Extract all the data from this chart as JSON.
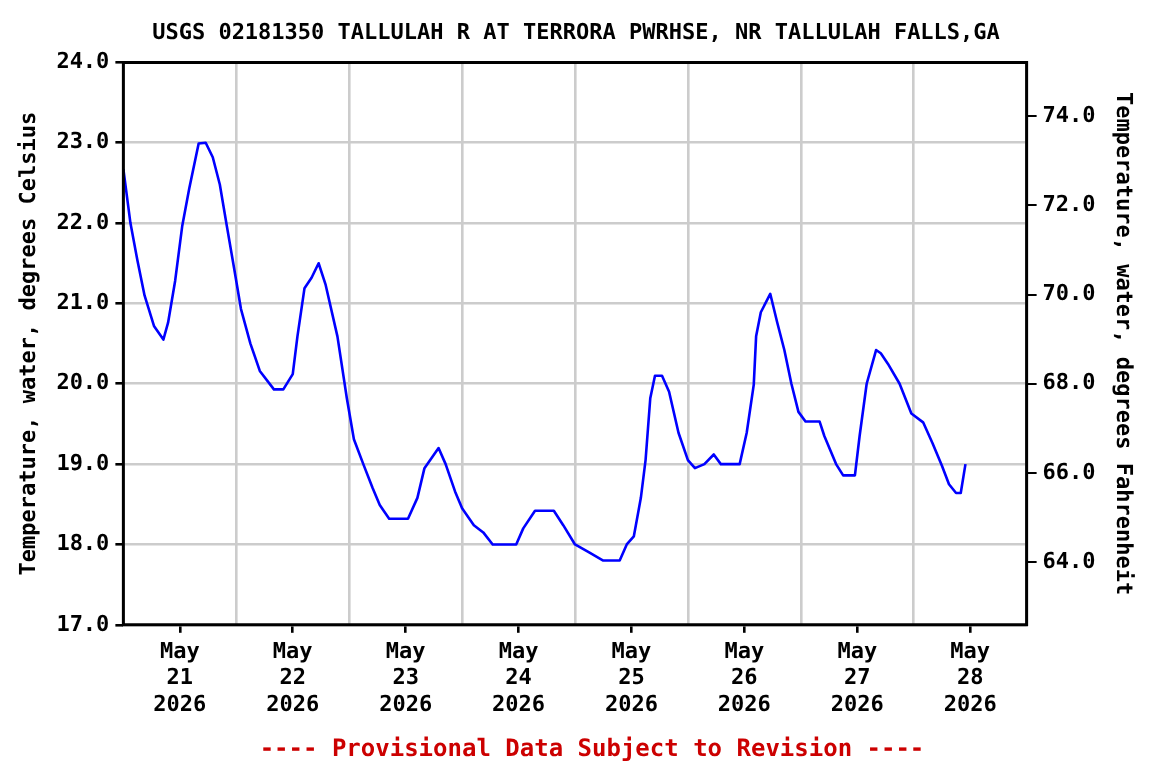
{
  "chart_data": {
    "type": "line",
    "title": "USGS 02181350 TALLULAH R AT TERRORA PWRHSE, NR TALLULAH FALLS,GA",
    "ylabel": "Temperature, water, degrees Celsius",
    "y2label": "Temperature, water, degrees Fahrenheit",
    "annotations": [
      "---- Provisional Data Subject to Revision ----"
    ],
    "x": [
      "2026-05-21T00:00",
      "2026-05-21T01:30",
      "2026-05-21T03:00",
      "2026-05-21T04:30",
      "2026-05-21T06:30",
      "2026-05-21T08:30",
      "2026-05-21T09:30",
      "2026-05-21T11:00",
      "2026-05-21T12:30",
      "2026-05-21T14:00",
      "2026-05-21T16:00",
      "2026-05-21T17:30",
      "2026-05-21T19:00",
      "2026-05-21T20:30",
      "2026-05-21T22:00",
      "2026-05-21T23:30",
      "2026-05-22T01:00",
      "2026-05-22T03:00",
      "2026-05-22T05:00",
      "2026-05-22T08:00",
      "2026-05-22T10:00",
      "2026-05-22T12:00",
      "2026-05-22T13:00",
      "2026-05-22T14:30",
      "2026-05-22T16:00",
      "2026-05-22T17:30",
      "2026-05-22T19:00",
      "2026-05-22T21:30",
      "2026-05-22T23:30",
      "2026-05-23T01:00",
      "2026-05-23T03:00",
      "2026-05-23T05:00",
      "2026-05-23T06:30",
      "2026-05-23T08:30",
      "2026-05-23T12:30",
      "2026-05-23T14:30",
      "2026-05-23T16:00",
      "2026-05-23T19:00",
      "2026-05-23T20:30",
      "2026-05-23T22:30",
      "2026-05-24T00:00",
      "2026-05-24T02:30",
      "2026-05-24T04:30",
      "2026-05-24T06:30",
      "2026-05-24T11:30",
      "2026-05-24T13:00",
      "2026-05-24T15:30",
      "2026-05-24T19:30",
      "2026-05-24T21:30",
      "2026-05-25T00:00",
      "2026-05-25T03:00",
      "2026-05-25T06:00",
      "2026-05-25T09:30",
      "2026-05-25T11:00",
      "2026-05-25T12:30",
      "2026-05-25T14:00",
      "2026-05-25T15:00",
      "2026-05-25T16:00",
      "2026-05-25T17:00",
      "2026-05-25T18:30",
      "2026-05-25T20:00",
      "2026-05-25T22:00",
      "2026-05-26T00:00",
      "2026-05-26T01:30",
      "2026-05-26T03:30",
      "2026-05-26T05:30",
      "2026-05-26T07:00",
      "2026-05-26T11:00",
      "2026-05-26T12:30",
      "2026-05-26T14:00",
      "2026-05-26T14:30",
      "2026-05-26T15:30",
      "2026-05-26T17:30",
      "2026-05-26T19:00",
      "2026-05-26T20:30",
      "2026-05-26T22:00",
      "2026-05-26T23:30",
      "2026-05-27T01:00",
      "2026-05-27T04:00",
      "2026-05-27T05:00",
      "2026-05-27T07:30",
      "2026-05-27T09:00",
      "2026-05-27T11:30",
      "2026-05-27T12:30",
      "2026-05-27T14:00",
      "2026-05-27T16:00",
      "2026-05-27T17:00",
      "2026-05-27T18:30",
      "2026-05-27T21:00",
      "2026-05-27T23:30",
      "2026-05-28T02:00",
      "2026-05-28T04:00",
      "2026-05-28T06:00",
      "2026-05-28T07:30",
      "2026-05-28T09:00",
      "2026-05-28T10:00",
      "2026-05-28T11:00"
    ],
    "series": [
      {
        "color": "#0000ff",
        "values": [
          22.67,
          22.0,
          21.53,
          21.1,
          20.72,
          20.55,
          20.76,
          21.28,
          21.96,
          22.43,
          22.99,
          23.0,
          22.82,
          22.48,
          21.96,
          21.45,
          20.93,
          20.5,
          20.16,
          19.93,
          19.93,
          20.12,
          20.59,
          21.19,
          21.32,
          21.5,
          21.23,
          20.59,
          19.82,
          19.31,
          19.0,
          18.7,
          18.49,
          18.32,
          18.32,
          18.58,
          18.95,
          19.2,
          19.0,
          18.66,
          18.45,
          18.24,
          18.15,
          18.0,
          18.0,
          18.2,
          18.42,
          18.42,
          18.24,
          18.0,
          17.9,
          17.8,
          17.8,
          18.0,
          18.1,
          18.58,
          19.05,
          19.82,
          20.1,
          20.1,
          19.9,
          19.39,
          19.05,
          18.95,
          19.0,
          19.12,
          19.0,
          19.0,
          19.39,
          19.99,
          20.59,
          20.89,
          21.12,
          20.76,
          20.42,
          20.0,
          19.65,
          19.53,
          19.53,
          19.35,
          19.0,
          18.86,
          18.86,
          19.35,
          20.0,
          20.42,
          20.38,
          20.25,
          20.0,
          19.63,
          19.52,
          19.26,
          18.98,
          18.75,
          18.64,
          18.64,
          19.0
        ]
      }
    ],
    "xlim": [
      "2026-05-21",
      "2026-05-29"
    ],
    "xticks": [
      {
        "value": "2026-05-21",
        "label": null
      },
      {
        "value": "2026-05-21T12:00",
        "label": "May 21 2026"
      },
      {
        "value": "2026-05-22",
        "label": null
      },
      {
        "value": "2026-05-22T12:00",
        "label": "May 22 2026"
      },
      {
        "value": "2026-05-23",
        "label": null
      },
      {
        "value": "2026-05-23T12:00",
        "label": "May 23 2026"
      },
      {
        "value": "2026-05-24",
        "label": null
      },
      {
        "value": "2026-05-24T12:00",
        "label": "May 24 2026"
      },
      {
        "value": "2026-05-25",
        "label": null
      },
      {
        "value": "2026-05-25T12:00",
        "label": "May 25 2026"
      },
      {
        "value": "2026-05-26",
        "label": null
      },
      {
        "value": "2026-05-26T12:00",
        "label": "May 26 2026"
      },
      {
        "value": "2026-05-27",
        "label": null
      },
      {
        "value": "2026-05-27T12:00",
        "label": "May 27 2026"
      },
      {
        "value": "2026-05-28",
        "label": null
      },
      {
        "value": "2026-05-28T12:00",
        "label": "May 28 2026"
      },
      {
        "value": "2026-05-29",
        "label": null
      }
    ],
    "ylim": [
      17,
      24
    ],
    "yticks": [
      {
        "value": 17,
        "label": "17.0"
      },
      {
        "value": 18,
        "label": "18.0"
      },
      {
        "value": 19,
        "label": "19.0"
      },
      {
        "value": 20,
        "label": "20.0"
      },
      {
        "value": 21,
        "label": "21.0"
      },
      {
        "value": 22,
        "label": "22.0"
      },
      {
        "value": 23,
        "label": "23.0"
      },
      {
        "value": 24,
        "label": "24.0"
      }
    ],
    "y2lim": [
      62.6,
      75.2
    ],
    "y2ticks": [
      {
        "value": 64,
        "label": "64.0"
      },
      {
        "value": 66,
        "label": "66.0"
      },
      {
        "value": 68,
        "label": "68.0"
      },
      {
        "value": 70,
        "label": "70.0"
      },
      {
        "value": 72,
        "label": "72.0"
      },
      {
        "value": 74,
        "label": "74.0"
      }
    ],
    "grid": true,
    "legend": false
  }
}
